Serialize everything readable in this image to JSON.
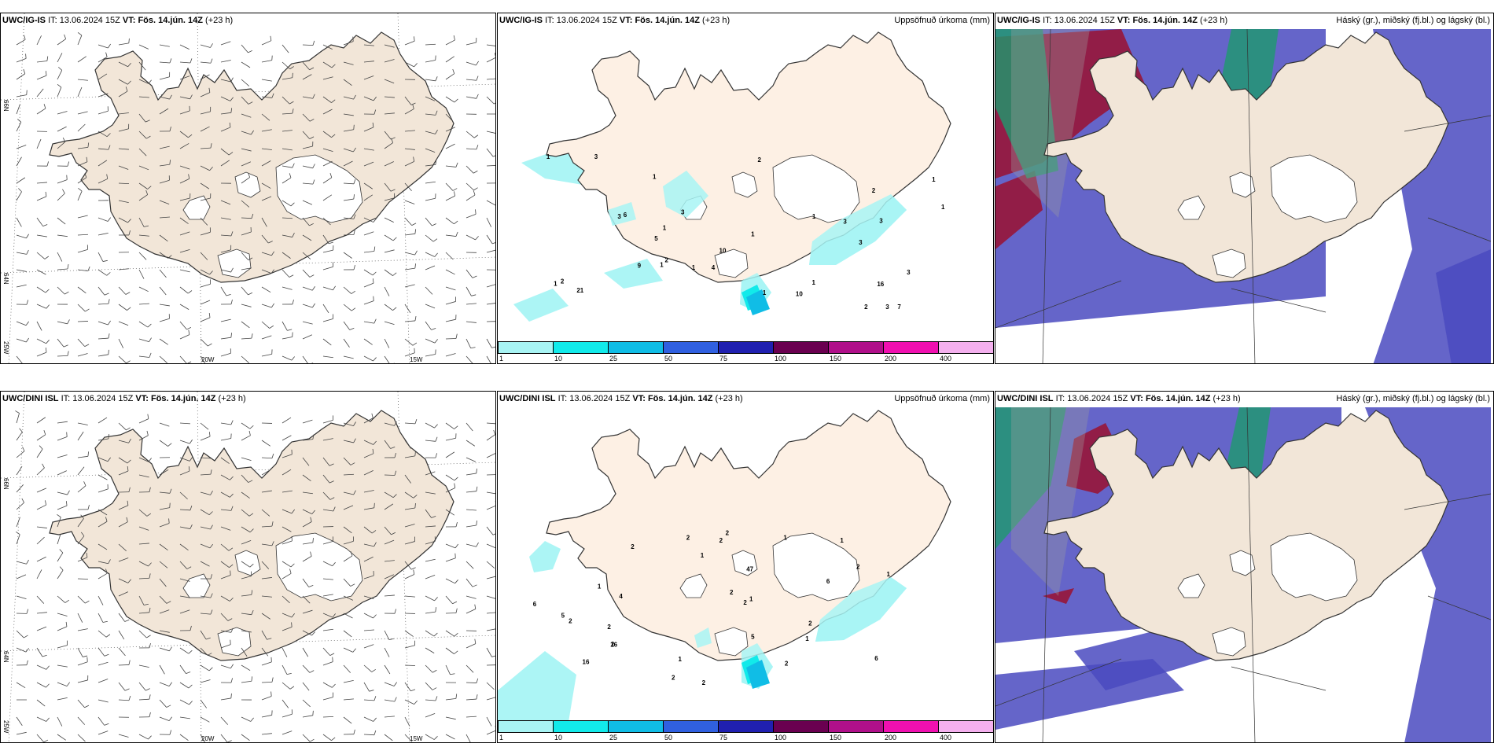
{
  "rows": [
    {
      "model": "UWC/IG-IS",
      "it_label": "IT:",
      "it_value": "13.06.2024 15Z",
      "vt_label": "VT:",
      "vt_value": "Fös. 14.jún. 14Z",
      "lead": "(+23 h)"
    },
    {
      "model": "UWC/DINI ISL",
      "it_label": "IT:",
      "it_value": "13.06.2024 15Z",
      "vt_label": "VT:",
      "vt_value": "Fös. 14.jún. 14Z",
      "lead": "(+23 h)"
    }
  ],
  "precip_title": "Uppsöfnuð úrkoma (mm)",
  "cloud_title": "Háský (gr.), miðský (fj.bl.) og lágský (bl.)",
  "axis_labels": {
    "lat66": "66N",
    "lat64": "64N",
    "lon25": "25W",
    "lon20": "20W",
    "lon15": "15W"
  },
  "colorbar": {
    "labels": [
      "1",
      "10",
      "25",
      "50",
      "75",
      "100",
      "150",
      "200",
      "400"
    ],
    "colors": [
      "#a8f4f4",
      "#12eaea",
      "#10bde6",
      "#3060e0",
      "#2020b0",
      "#6a0050",
      "#b0108a",
      "#f010b0",
      "#f4b0ee"
    ]
  },
  "colors": {
    "land": "#f2e6d8",
    "land_precip": "#fdf0e4",
    "high_cloud": "#9e9e9e",
    "mid_cloud": "#1e9a6e",
    "low_cloud": "#4a4ac0",
    "mid_cloud_alt": "#9a1030"
  },
  "precip_values_top": [
    "10",
    "3",
    "3",
    "3",
    "7",
    "1",
    "4",
    "5",
    "1",
    "3",
    "3",
    "2",
    "1",
    "2",
    "1",
    "1",
    "1",
    "1",
    "1",
    "3",
    "3",
    "6",
    "10",
    "9",
    "16",
    "1",
    "1",
    "2",
    "2",
    "1",
    "2",
    "1",
    "21",
    "3"
  ],
  "precip_values_bottom": [
    "16",
    "1",
    "2",
    "2",
    "5",
    "4",
    "2",
    "2",
    "1",
    "6",
    "5",
    "2",
    "1",
    "2",
    "2",
    "2",
    "6",
    "6",
    "16",
    "2",
    "2",
    "2",
    "1",
    "1",
    "2",
    "1",
    "2",
    "1",
    "47",
    "2",
    "1"
  ]
}
